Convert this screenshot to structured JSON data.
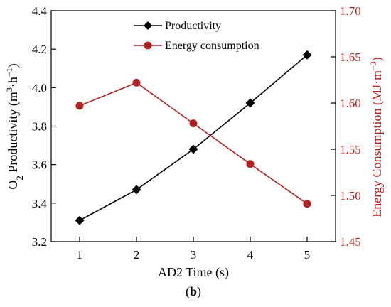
{
  "chart_data": {
    "type": "line",
    "x": [
      1,
      2,
      3,
      4,
      5
    ],
    "xticks": [
      "1",
      "2",
      "3",
      "4",
      "5"
    ],
    "xlabel": "AD2 Time (s)",
    "xlim": [
      0.5,
      5.5
    ],
    "ylabel_left": {
      "main": "O",
      "sub": "2",
      "rest": " Productivity (m",
      "sup1": "3",
      "mid": "·h",
      "sup2": "−1",
      "end": ")"
    },
    "ylim_left": [
      3.2,
      4.4
    ],
    "yticks_left": [
      "3.2",
      "3.4",
      "3.6",
      "3.8",
      "4.0",
      "4.2",
      "4.4"
    ],
    "ylabel_right": {
      "main": "Energy Consumption (MJ·m",
      "sup": "−3",
      "end": ")"
    },
    "ylim_right": [
      1.45,
      1.7
    ],
    "yticks_right": [
      "1.45",
      "1.50",
      "1.55",
      "1.60",
      "1.65",
      "1.70"
    ],
    "series": [
      {
        "name": "Productivity",
        "axis": "left",
        "values": [
          3.31,
          3.47,
          3.68,
          3.92,
          4.17
        ],
        "color": "#000000",
        "marker": "diamond"
      },
      {
        "name": "Energy consumption",
        "axis": "right",
        "values": [
          1.597,
          1.622,
          1.578,
          1.534,
          1.491
        ],
        "color": "#b22222",
        "marker": "circle"
      }
    ],
    "legend_position": "top-left",
    "grid": false,
    "caption": {
      "open": "(",
      "letter": "b",
      "close": ")"
    }
  }
}
